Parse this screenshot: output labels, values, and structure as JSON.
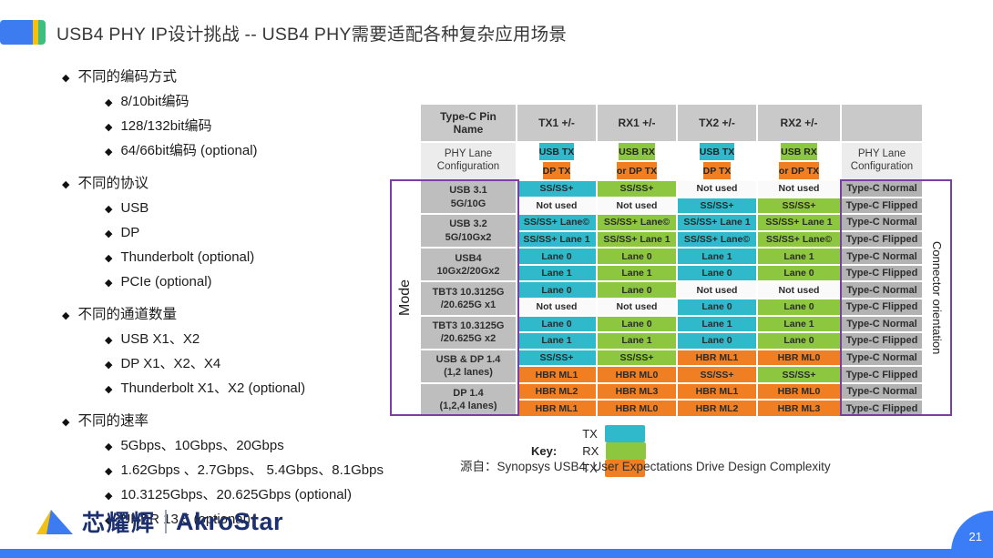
{
  "slide": {
    "title": "USB4 PHY IP设计挑战 -- USB4 PHY需要适配各种复杂应用场景",
    "page_number": "21"
  },
  "bullets": {
    "sections": [
      {
        "title": "不同的编码方式",
        "items": [
          "8/10bit编码",
          "128/132bit编码",
          "64/66bit编码 (optional)"
        ]
      },
      {
        "title": "不同的协议",
        "items": [
          "USB",
          "DP",
          "Thunderbolt (optional)",
          "PCIe (optional)"
        ]
      },
      {
        "title": "不同的通道数量",
        "items": [
          "USB X1、X2",
          "DP X1、X2、X4",
          "Thunderbolt X1、X2 (optional)"
        ]
      },
      {
        "title": "不同的速率",
        "items": [
          "5Gbps、10Gbps、20Gbps",
          "1.62Gbps 、2.7Gbps、 5.4Gbps、8.1Gbps",
          "10.3125Gbps、20.625Gbps  (optional)",
          "UHBR 13.5  (optional)"
        ]
      }
    ]
  },
  "table": {
    "col_headers": [
      "Type-C Pin Name",
      "TX1 +/-",
      "RX1 +/-",
      "TX2 +/-",
      "RX2 +/-",
      ""
    ],
    "lane_config_header": {
      "left_label": "PHY Lane Configuration",
      "right_label": "PHY Lane Configuration",
      "cells": [
        {
          "top": {
            "text": "USB TX",
            "color": "cyan"
          },
          "bottom": {
            "text": "DP TX",
            "color": "orange"
          }
        },
        {
          "top": {
            "text": "USB RX",
            "color": "green"
          },
          "bottom": {
            "text": "or DP TX",
            "color": "orange"
          }
        },
        {
          "top": {
            "text": "USB TX",
            "color": "cyan"
          },
          "bottom": {
            "text": "DP TX",
            "color": "orange"
          }
        },
        {
          "top": {
            "text": "USB RX",
            "color": "green"
          },
          "bottom": {
            "text": "or DP TX",
            "color": "orange"
          }
        }
      ]
    },
    "left_axis_label": "Mode",
    "right_axis_label": "Connector orientation",
    "groups": [
      {
        "mode_lines": [
          "USB 3.1",
          "5G/10G"
        ],
        "rows": [
          {
            "cells": [
              {
                "text": "SS/SS+",
                "color": "cyan"
              },
              {
                "text": "SS/SS+",
                "color": "green"
              },
              {
                "text": "Not used",
                "color": "white"
              },
              {
                "text": "Not used",
                "color": "white"
              }
            ],
            "orientation": "Type-C Normal"
          },
          {
            "cells": [
              {
                "text": "Not used",
                "color": "white"
              },
              {
                "text": "Not used",
                "color": "white"
              },
              {
                "text": "SS/SS+",
                "color": "cyan"
              },
              {
                "text": "SS/SS+",
                "color": "green"
              }
            ],
            "orientation": "Type-C Flipped"
          }
        ]
      },
      {
        "mode_lines": [
          "USB 3.2",
          "5G/10Gx2"
        ],
        "rows": [
          {
            "cells": [
              {
                "text": "SS/SS+ Lane©",
                "color": "cyan"
              },
              {
                "text": "SS/SS+ Lane©",
                "color": "green"
              },
              {
                "text": "SS/SS+ Lane 1",
                "color": "cyan"
              },
              {
                "text": "SS/SS+ Lane 1",
                "color": "green"
              }
            ],
            "orientation": "Type-C Normal"
          },
          {
            "cells": [
              {
                "text": "SS/SS+ Lane 1",
                "color": "cyan"
              },
              {
                "text": "SS/SS+ Lane 1",
                "color": "green"
              },
              {
                "text": "SS/SS+ Lane©",
                "color": "cyan"
              },
              {
                "text": "SS/SS+ Lane©",
                "color": "green"
              }
            ],
            "orientation": "Type-C Flipped"
          }
        ]
      },
      {
        "mode_lines": [
          "USB4",
          "10Gx2/20Gx2"
        ],
        "rows": [
          {
            "cells": [
              {
                "text": "Lane 0",
                "color": "cyan"
              },
              {
                "text": "Lane 0",
                "color": "green"
              },
              {
                "text": "Lane 1",
                "color": "cyan"
              },
              {
                "text": "Lane 1",
                "color": "green"
              }
            ],
            "orientation": "Type-C Normal"
          },
          {
            "cells": [
              {
                "text": "Lane 1",
                "color": "cyan"
              },
              {
                "text": "Lane 1",
                "color": "green"
              },
              {
                "text": "Lane 0",
                "color": "cyan"
              },
              {
                "text": "Lane 0",
                "color": "green"
              }
            ],
            "orientation": "Type-C Flipped"
          }
        ]
      },
      {
        "mode_lines": [
          "TBT3 10.3125G",
          "/20.625G x1"
        ],
        "rows": [
          {
            "cells": [
              {
                "text": "Lane 0",
                "color": "cyan"
              },
              {
                "text": "Lane 0",
                "color": "green"
              },
              {
                "text": "Not used",
                "color": "white"
              },
              {
                "text": "Not used",
                "color": "white"
              }
            ],
            "orientation": "Type-C Normal"
          },
          {
            "cells": [
              {
                "text": "Not used",
                "color": "white"
              },
              {
                "text": "Not used",
                "color": "white"
              },
              {
                "text": "Lane 0",
                "color": "cyan"
              },
              {
                "text": "Lane 0",
                "color": "green"
              }
            ],
            "orientation": "Type-C Flipped"
          }
        ]
      },
      {
        "mode_lines": [
          "TBT3 10.3125G",
          "/20.625G x2"
        ],
        "rows": [
          {
            "cells": [
              {
                "text": "Lane 0",
                "color": "cyan"
              },
              {
                "text": "Lane 0",
                "color": "green"
              },
              {
                "text": "Lane 1",
                "color": "cyan"
              },
              {
                "text": "Lane 1",
                "color": "green"
              }
            ],
            "orientation": "Type-C Normal"
          },
          {
            "cells": [
              {
                "text": "Lane 1",
                "color": "cyan"
              },
              {
                "text": "Lane 1",
                "color": "green"
              },
              {
                "text": "Lane 0",
                "color": "cyan"
              },
              {
                "text": "Lane 0",
                "color": "green"
              }
            ],
            "orientation": "Type-C Flipped"
          }
        ]
      },
      {
        "mode_lines": [
          "USB & DP 1.4",
          "(1,2 lanes)"
        ],
        "rows": [
          {
            "cells": [
              {
                "text": "SS/SS+",
                "color": "cyan"
              },
              {
                "text": "SS/SS+",
                "color": "green"
              },
              {
                "text": "HBR ML1",
                "color": "orange"
              },
              {
                "text": "HBR ML0",
                "color": "orange"
              }
            ],
            "orientation": "Type-C Normal"
          },
          {
            "cells": [
              {
                "text": "HBR ML1",
                "color": "orange"
              },
              {
                "text": "HBR ML0",
                "color": "orange"
              },
              {
                "text": "SS/SS+",
                "color": "orange"
              },
              {
                "text": "SS/SS+",
                "color": "green"
              }
            ],
            "orientation": "Type-C Flipped"
          }
        ]
      },
      {
        "mode_lines": [
          "DP 1.4",
          "(1,2,4 lanes)"
        ],
        "rows": [
          {
            "cells": [
              {
                "text": "HBR ML2",
                "color": "orange"
              },
              {
                "text": "HBR ML3",
                "color": "orange"
              },
              {
                "text": "HBR ML1",
                "color": "orange"
              },
              {
                "text": "HBR ML0",
                "color": "orange"
              }
            ],
            "orientation": "Type-C Normal"
          },
          {
            "cells": [
              {
                "text": "HBR ML1",
                "color": "orange"
              },
              {
                "text": "HBR ML0",
                "color": "orange"
              },
              {
                "text": "HBR ML2",
                "color": "orange"
              },
              {
                "text": "HBR ML3",
                "color": "orange"
              }
            ],
            "orientation": "Type-C Flipped"
          }
        ]
      }
    ]
  },
  "key": {
    "label": "Key:",
    "items": [
      {
        "label": "TX",
        "color": "#2FB9CB"
      },
      {
        "label": "RX",
        "color": "#8DC63F"
      },
      {
        "label": "TX",
        "color": "#EF7F22"
      }
    ]
  },
  "source": "源自：Synopsys USB4: User Expectations Drive Design Complexity",
  "footer": {
    "brand_cn": "芯耀辉",
    "brand_en": "AkroStar"
  },
  "colors": {
    "cyan": "#2FB9CB",
    "green": "#8DC63F",
    "orange": "#EF7F22",
    "white": "#FAFAFA",
    "purple_outline": "#7A3FA2",
    "accent_blue": "#3A7DF6",
    "brand_navy": "#1C2F6E"
  }
}
